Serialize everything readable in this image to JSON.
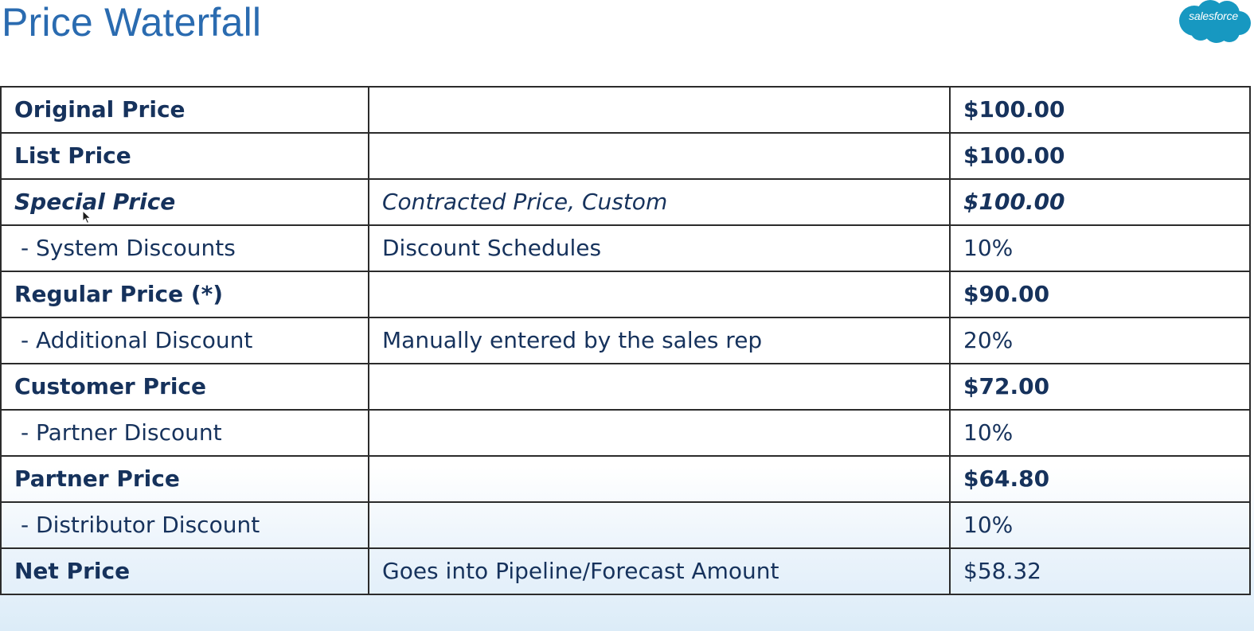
{
  "slide": {
    "title": "Price Waterfall",
    "logo_text": "salesforce"
  },
  "colors": {
    "title": "#2a6bb0",
    "text": "#16325c",
    "logo_cloud": "#1798c1",
    "border": "#2b2b2b"
  },
  "table": {
    "rows": [
      {
        "label": "Original Price",
        "desc": "",
        "value": "$100.00",
        "style": "bold"
      },
      {
        "label": "List Price",
        "desc": "",
        "value": "$100.00",
        "style": "bold"
      },
      {
        "label": "Special Price",
        "desc": "Contracted Price, Custom",
        "value": "$100.00",
        "style": "bold-italic"
      },
      {
        "label": "- System Discounts",
        "desc": "Discount Schedules",
        "value": "10%",
        "style": "sub"
      },
      {
        "label": "Regular Price (*)",
        "desc": "",
        "value": "$90.00",
        "style": "bold"
      },
      {
        "label": "- Additional Discount",
        "desc": "Manually entered by the sales rep",
        "value": "20%",
        "style": "sub"
      },
      {
        "label": "Customer Price",
        "desc": "",
        "value": "$72.00",
        "style": "bold"
      },
      {
        "label": "- Partner Discount",
        "desc": "",
        "value": "10%",
        "style": "sub"
      },
      {
        "label": "Partner Price",
        "desc": "",
        "value": "$64.80",
        "style": "bold"
      },
      {
        "label": "- Distributor Discount",
        "desc": "",
        "value": "10%",
        "style": "sub"
      },
      {
        "label": "Net Price",
        "desc": "Goes into Pipeline/Forecast Amount",
        "value": "$58.32",
        "style": "net"
      }
    ]
  },
  "icons": {
    "logo": "salesforce-cloud-logo",
    "cursor": "mouse-pointer-icon"
  }
}
